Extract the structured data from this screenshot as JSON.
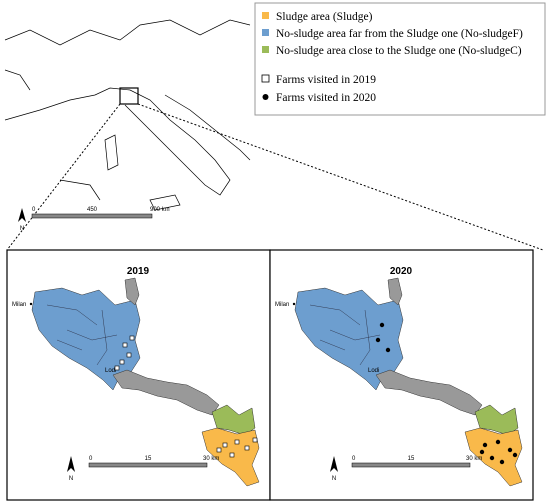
{
  "legend": {
    "items": [
      "Sludge area (Sludge)",
      "No-sludge area far from the Sludge one (No-sludgeF)",
      "No-sludge area close to the Sludge one (No-sludgeC)",
      "Farms visited in 2019",
      "Farms visited in 2020"
    ]
  },
  "overview": {
    "scale": [
      "0",
      "450",
      "900 km"
    ],
    "north": "N"
  },
  "panels": [
    {
      "title": "2019",
      "city1": "Milan",
      "city2": "Lodi",
      "scale": [
        "0",
        "15",
        "30 km"
      ],
      "north": "N"
    },
    {
      "title": "2020",
      "city1": "Milan",
      "city2": "Lodi",
      "scale": [
        "0",
        "15",
        "30 km"
      ],
      "north": "N"
    }
  ]
}
